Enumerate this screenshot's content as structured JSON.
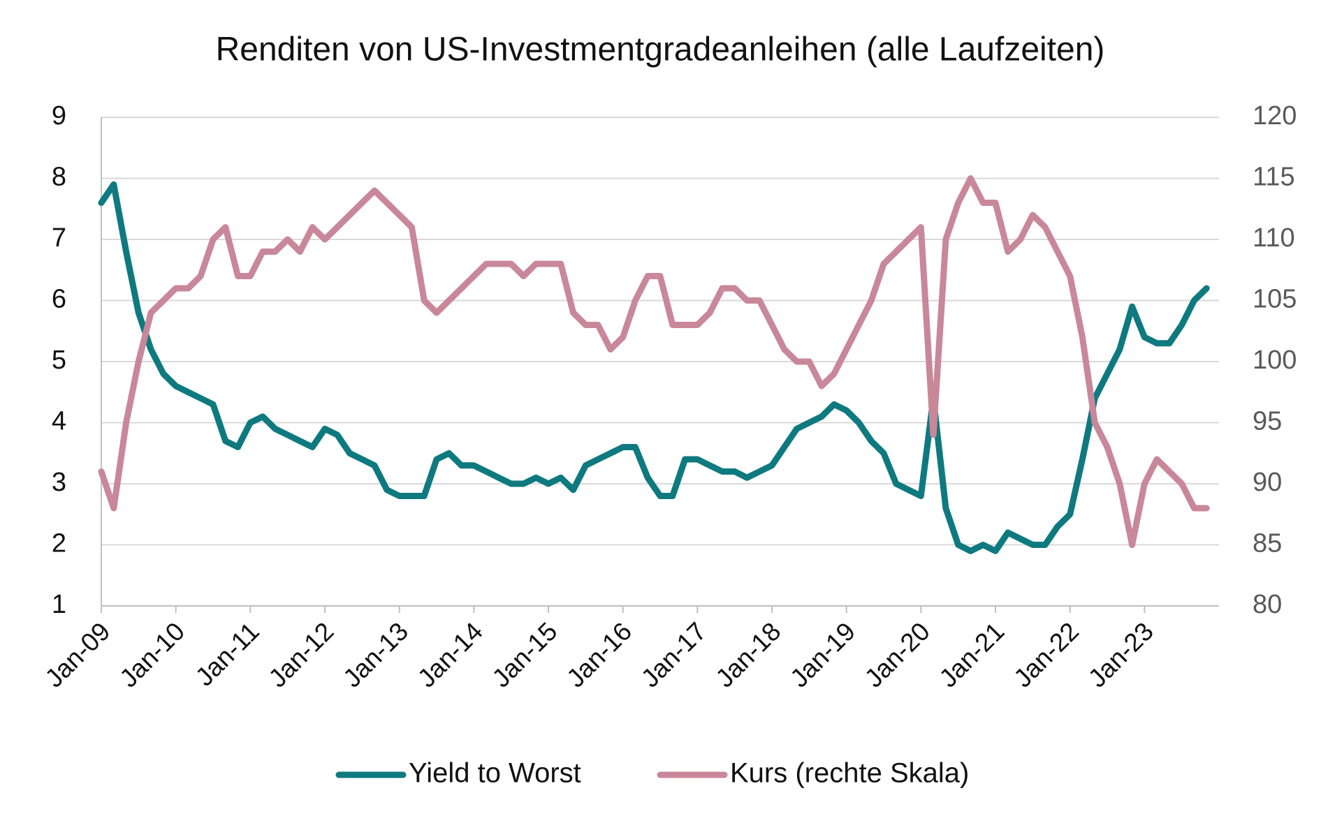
{
  "chart_data": {
    "type": "line",
    "title": "Renditen von US-Investmentgradeanleihen (alle Laufzeiten)",
    "categories": [
      "Jan-09",
      null,
      null,
      null,
      null,
      null,
      "Jan-10",
      null,
      null,
      null,
      null,
      null,
      "Jan-11",
      null,
      null,
      null,
      null,
      null,
      "Jan-12",
      null,
      null,
      null,
      null,
      null,
      "Jan-13",
      null,
      null,
      null,
      null,
      null,
      "Jan-14",
      null,
      null,
      null,
      null,
      null,
      "Jan-15",
      null,
      null,
      null,
      null,
      null,
      "Jan-16",
      null,
      null,
      null,
      null,
      null,
      "Jan-17",
      null,
      null,
      null,
      null,
      null,
      "Jan-18",
      null,
      null,
      null,
      null,
      null,
      "Jan-19",
      null,
      null,
      null,
      null,
      null,
      "Jan-20",
      null,
      null,
      null,
      null,
      null,
      "Jan-21",
      null,
      null,
      null,
      null,
      null,
      "Jan-22",
      null,
      null,
      null,
      null,
      null,
      "Jan-23",
      null,
      null,
      null,
      null,
      null
    ],
    "series": [
      {
        "name": "Yield to Worst",
        "color": "#0e7a80",
        "axis": "y",
        "values": [
          7.6,
          7.9,
          6.8,
          5.8,
          5.2,
          4.8,
          4.6,
          4.5,
          4.4,
          4.3,
          3.7,
          3.6,
          4.0,
          4.1,
          3.9,
          3.8,
          3.7,
          3.6,
          3.9,
          3.8,
          3.5,
          3.4,
          3.3,
          2.9,
          2.8,
          2.8,
          2.8,
          3.4,
          3.5,
          3.3,
          3.3,
          3.2,
          3.1,
          3.0,
          3.0,
          3.1,
          3.0,
          3.1,
          2.9,
          3.3,
          3.4,
          3.5,
          3.6,
          3.6,
          3.1,
          2.8,
          2.8,
          3.4,
          3.4,
          3.3,
          3.2,
          3.2,
          3.1,
          3.2,
          3.3,
          3.6,
          3.9,
          4.0,
          4.1,
          4.3,
          4.2,
          4.0,
          3.7,
          3.5,
          3.0,
          2.9,
          2.8,
          4.4,
          2.6,
          2.0,
          1.9,
          2.0,
          1.9,
          2.2,
          2.1,
          2.0,
          2.0,
          2.3,
          2.5,
          3.4,
          4.4,
          4.8,
          5.2,
          5.9,
          5.4,
          5.3,
          5.3,
          5.6,
          6.0,
          6.2
        ]
      },
      {
        "name": "Kurs (rechte Skala)",
        "color": "#c9879a",
        "axis": "y2",
        "values": [
          91,
          88,
          95,
          100,
          104,
          105,
          106,
          106,
          107,
          110,
          111,
          107,
          107,
          109,
          109,
          110,
          109,
          111,
          110,
          111,
          112,
          113,
          114,
          113,
          112,
          111,
          105,
          104,
          105,
          106,
          107,
          108,
          108,
          108,
          107,
          108,
          108,
          108,
          104,
          103,
          103,
          101,
          102,
          105,
          107,
          107,
          103,
          103,
          103,
          104,
          106,
          106,
          105,
          105,
          103,
          101,
          100,
          100,
          98,
          99,
          101,
          103,
          105,
          108,
          109,
          110,
          111,
          94,
          110,
          113,
          115,
          113,
          113,
          109,
          110,
          112,
          111,
          109,
          107,
          102,
          95,
          93,
          90,
          85,
          90,
          92,
          91,
          90,
          88,
          88
        ]
      }
    ],
    "ylim": [
      1,
      9
    ],
    "yticks": [
      1,
      2,
      3,
      4,
      5,
      6,
      7,
      8,
      9
    ],
    "y2lim": [
      80,
      120
    ],
    "y2ticks": [
      80,
      85,
      90,
      95,
      100,
      105,
      110,
      115,
      120
    ],
    "grid": true,
    "legend": "bottom"
  }
}
